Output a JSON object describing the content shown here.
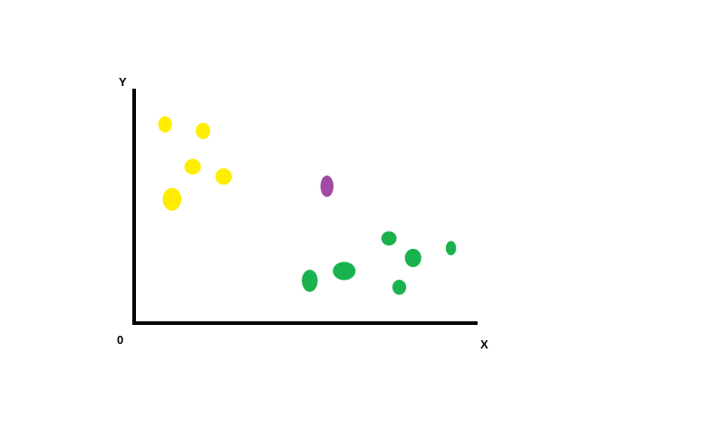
{
  "chart_data": {
    "type": "scatter",
    "title": "",
    "xlabel": "X",
    "ylabel": "Y",
    "origin_label": "0",
    "xlim": [
      0,
      10
    ],
    "ylim": [
      0,
      7
    ],
    "grid": false,
    "series": [
      {
        "color": "#ffee00",
        "points": [
          {
            "x": 0.9,
            "y": 6.1,
            "rx": 0.2,
            "ry": 0.25
          },
          {
            "x": 2.0,
            "y": 5.9,
            "rx": 0.21,
            "ry": 0.25
          },
          {
            "x": 1.7,
            "y": 4.8,
            "rx": 0.24,
            "ry": 0.24
          },
          {
            "x": 2.6,
            "y": 4.5,
            "rx": 0.24,
            "ry": 0.25
          },
          {
            "x": 1.1,
            "y": 3.8,
            "rx": 0.27,
            "ry": 0.35
          }
        ]
      },
      {
        "color": "#a04aa6",
        "points": [
          {
            "x": 5.6,
            "y": 4.2,
            "rx": 0.19,
            "ry": 0.33
          }
        ]
      },
      {
        "color": "#1ab24e",
        "points": [
          {
            "x": 7.4,
            "y": 2.6,
            "rx": 0.22,
            "ry": 0.22
          },
          {
            "x": 9.2,
            "y": 2.3,
            "rx": 0.15,
            "ry": 0.22
          },
          {
            "x": 8.1,
            "y": 2.0,
            "rx": 0.24,
            "ry": 0.28
          },
          {
            "x": 6.1,
            "y": 1.6,
            "rx": 0.33,
            "ry": 0.28
          },
          {
            "x": 5.1,
            "y": 1.3,
            "rx": 0.23,
            "ry": 0.34
          },
          {
            "x": 7.7,
            "y": 1.1,
            "rx": 0.2,
            "ry": 0.23
          }
        ]
      }
    ]
  }
}
